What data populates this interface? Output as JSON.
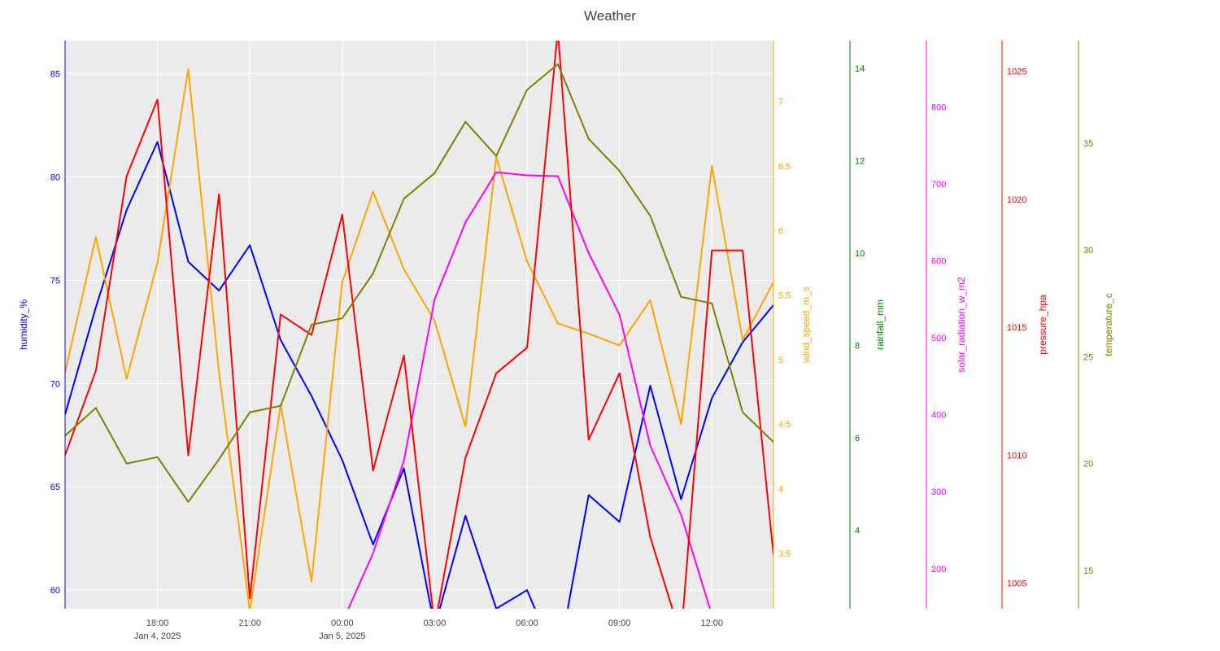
{
  "chart_data": {
    "type": "line",
    "title": "Weather",
    "x_tick_labels": [
      {
        "x": "2025-01-04 18:00",
        "label": "18:00",
        "sublabel": "Jan 4, 2025"
      },
      {
        "x": "2025-01-04 21:00",
        "label": "21:00",
        "sublabel": ""
      },
      {
        "x": "2025-01-05 00:00",
        "label": "00:00",
        "sublabel": "Jan 5, 2025"
      },
      {
        "x": "2025-01-05 03:00",
        "label": "03:00",
        "sublabel": ""
      },
      {
        "x": "2025-01-05 06:00",
        "label": "06:00",
        "sublabel": ""
      },
      {
        "x": "2025-01-05 09:00",
        "label": "09:00",
        "sublabel": ""
      },
      {
        "x": "2025-01-05 12:00",
        "label": "12:00",
        "sublabel": ""
      }
    ],
    "x": [
      "2025-01-04 15:00",
      "2025-01-04 16:00",
      "2025-01-04 17:00",
      "2025-01-04 18:00",
      "2025-01-04 19:00",
      "2025-01-04 20:00",
      "2025-01-04 21:00",
      "2025-01-04 22:00",
      "2025-01-04 23:00",
      "2025-01-05 00:00",
      "2025-01-05 01:00",
      "2025-01-05 02:00",
      "2025-01-05 03:00",
      "2025-01-05 04:00",
      "2025-01-05 05:00",
      "2025-01-05 06:00",
      "2025-01-05 07:00",
      "2025-01-05 08:00",
      "2025-01-05 09:00",
      "2025-01-05 10:00",
      "2025-01-05 11:00",
      "2025-01-05 12:00",
      "2025-01-05 13:00",
      "2025-01-05 14:00"
    ],
    "xlim": [
      "2025-01-04 15:00",
      "2025-01-05 14:00"
    ],
    "grid": true,
    "plot_background": "#ebebeb",
    "series": [
      {
        "name": "humidity_%",
        "axis": "humidity",
        "color": "#0000ff",
        "values": [
          68.5,
          73.7,
          78.4,
          81.7,
          75.9,
          74.5,
          76.7,
          72.1,
          69.4,
          66.3,
          62.2,
          65.9,
          58.2,
          63.6,
          59.1,
          60.0,
          56.5,
          64.6,
          63.3,
          69.9,
          64.4,
          69.3,
          72.0,
          73.8
        ]
      },
      {
        "name": "wind_speed_m_s",
        "axis": "wind",
        "color": "#ffa500",
        "values": [
          4.9,
          5.95,
          4.85,
          5.75,
          7.25,
          4.9,
          3.05,
          4.65,
          3.28,
          5.6,
          6.3,
          5.7,
          5.3,
          4.48,
          6.57,
          5.76,
          5.28,
          5.2,
          5.11,
          5.46,
          4.5,
          6.5,
          5.15,
          5.6
        ]
      },
      {
        "name": "solar_radiation_w_m2",
        "axis": "solar",
        "color": "#ff00ff",
        "values": [
          null,
          null,
          null,
          null,
          null,
          null,
          null,
          null,
          null,
          130,
          220,
          340,
          550,
          650,
          715,
          711,
          710,
          610,
          530,
          360,
          270,
          140,
          null,
          null
        ]
      },
      {
        "name": "pressure_hpa",
        "axis": "pressure",
        "color": "#ff0000",
        "values": [
          1010.0,
          1013.3,
          1020.9,
          1023.9,
          1010.0,
          1020.2,
          1004.4,
          1015.5,
          1014.7,
          1019.4,
          1009.4,
          1013.9,
          1003.3,
          1009.9,
          1013.2,
          1014.2,
          1026.6,
          1010.6,
          1013.2,
          1006.8,
          1002.9,
          1018.0,
          1018.0,
          1006.1
        ]
      },
      {
        "name": "temperature_c",
        "axis": "temperature",
        "color": "#808000",
        "values": [
          21.3,
          22.6,
          20.0,
          20.3,
          18.2,
          20.2,
          22.4,
          22.7,
          26.5,
          26.8,
          28.9,
          32.4,
          33.6,
          36.0,
          34.4,
          37.5,
          38.7,
          35.2,
          33.7,
          31.6,
          27.8,
          27.5,
          22.4,
          21.0
        ]
      }
    ],
    "axes": {
      "humidity": {
        "title": "humidity_%",
        "color": "#0000ff",
        "range": [
          59.1,
          86.6
        ],
        "ticks": [
          60,
          65,
          70,
          75,
          80,
          85
        ],
        "tick_labels": [
          "60",
          "65",
          "70",
          "75",
          "80",
          "85"
        ],
        "side": "left"
      },
      "wind": {
        "title": "wind_speed_m_s",
        "color": "#ffa500",
        "range": [
          3.07,
          7.47
        ],
        "ticks": [
          3.5,
          4,
          4.5,
          5,
          5.5,
          6,
          6.5,
          7
        ],
        "tick_labels": [
          "3.5",
          "4",
          "4.5",
          "5",
          "5.5",
          "6",
          "6.5",
          "7"
        ],
        "side": "right"
      },
      "rainfall": {
        "title": "rainfall_mm",
        "color": "#008000",
        "range": [
          2.3,
          14.6
        ],
        "ticks": [
          4,
          6,
          8,
          10,
          12,
          14
        ],
        "tick_labels": [
          "4",
          "6",
          "8",
          "10",
          "12",
          "14"
        ],
        "side": "right"
      },
      "solar": {
        "title": "solar_radiation_w_m2",
        "color": "#ff00ff",
        "range": [
          148,
          886
        ],
        "ticks": [
          200,
          300,
          400,
          500,
          600,
          700,
          800
        ],
        "tick_labels": [
          "200",
          "300",
          "400",
          "500",
          "600",
          "700",
          "800"
        ],
        "side": "right"
      },
      "pressure": {
        "title": "pressure_hpa",
        "color": "#ff0000",
        "range": [
          1004.0,
          1026.2
        ],
        "ticks": [
          1005,
          1010,
          1015,
          1020,
          1025
        ],
        "tick_labels": [
          "1005",
          "1010",
          "1015",
          "1020",
          "1025"
        ],
        "side": "right"
      },
      "temperature": {
        "title": "temperature_c",
        "color": "#808000",
        "range": [
          13.2,
          39.8
        ],
        "ticks": [
          15,
          20,
          25,
          30,
          35
        ],
        "tick_labels": [
          "15",
          "20",
          "25",
          "30",
          "35"
        ],
        "side": "right"
      }
    }
  }
}
